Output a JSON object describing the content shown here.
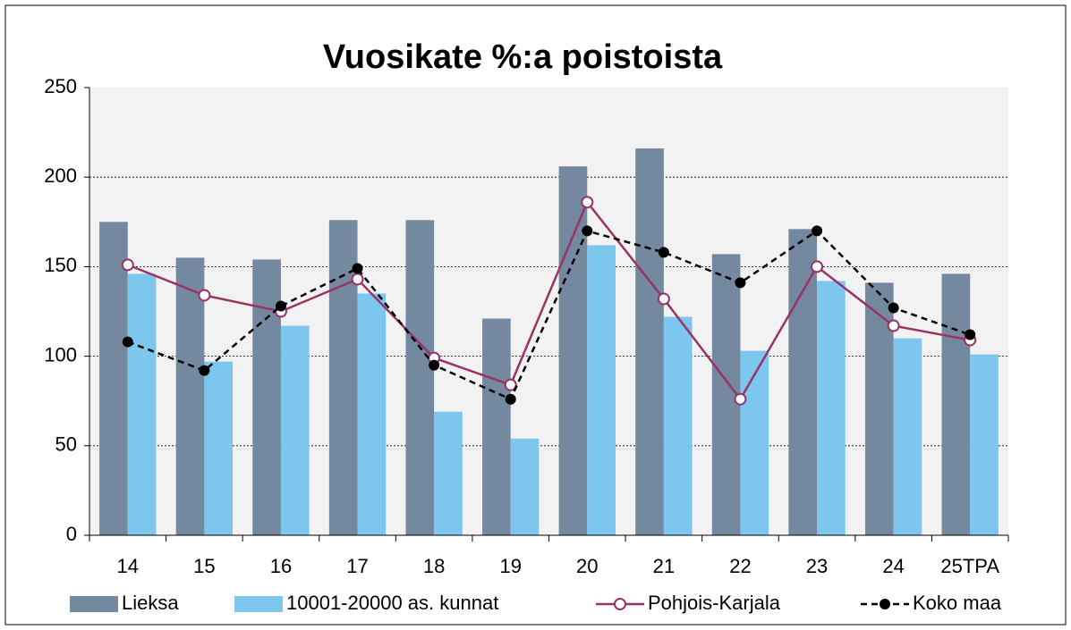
{
  "chart_data": {
    "type": "bar",
    "title": "Vuosikate %:a poistoista",
    "categories": [
      "14",
      "15",
      "16",
      "17",
      "18",
      "19",
      "20",
      "21",
      "22",
      "23",
      "24",
      "25TPA"
    ],
    "series": [
      {
        "name": "Lieksa",
        "type": "bar",
        "color": "#74889f",
        "values": [
          175,
          155,
          154,
          176,
          176,
          121,
          206,
          216,
          157,
          171,
          141,
          146
        ]
      },
      {
        "name": "10001-20000 as. kunnat",
        "type": "bar",
        "color": "#7dc7ef",
        "values": [
          146,
          97,
          117,
          135,
          69,
          54,
          162,
          122,
          103,
          142,
          110,
          101
        ]
      },
      {
        "name": "Pohjois-Karjala",
        "type": "line",
        "color": "#993366",
        "values": [
          151,
          134,
          125,
          143,
          99,
          84,
          186,
          132,
          76,
          150,
          117,
          109
        ]
      },
      {
        "name": "Koko maa",
        "type": "line",
        "dashed": true,
        "color": "#000000",
        "values": [
          108,
          92,
          128,
          149,
          95,
          76,
          170,
          158,
          141,
          170,
          127,
          112
        ]
      }
    ],
    "ylim": [
      0,
      250
    ],
    "yticks": [
      0,
      50,
      100,
      150,
      200,
      250
    ],
    "grid": true,
    "legend": "bottom"
  }
}
